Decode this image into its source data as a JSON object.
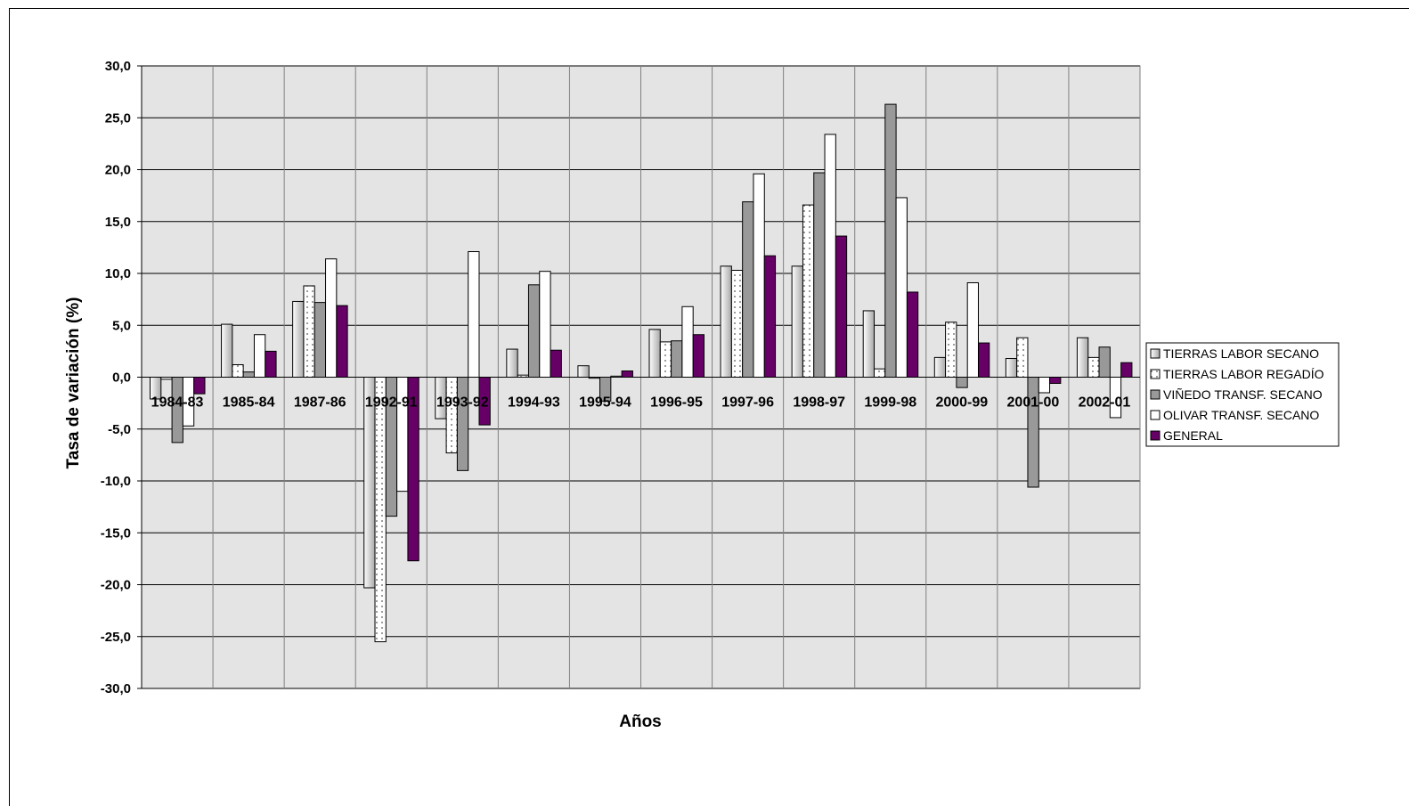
{
  "chart_data": {
    "type": "bar",
    "title": "",
    "xlabel": "Años",
    "ylabel": "Tasa de variación (%)",
    "ylim": [
      -30,
      30
    ],
    "ytick_step": 5,
    "ytick_labels": [
      "30,0",
      "25,0",
      "20,0",
      "15,0",
      "10,0",
      "5,0",
      "0,0",
      "-5,0",
      "-10,0",
      "-15,0",
      "-20,0",
      "-25,0",
      "-30,0"
    ],
    "grid": true,
    "legend_position": "right",
    "plot_background": "#e4e4e4",
    "categories": [
      "1984-83",
      "1985-84",
      "1987-86",
      "1992-91",
      "1993-92",
      "1994-93",
      "1995-94",
      "1996-95",
      "1997-96",
      "1998-97",
      "1999-98",
      "2000-99",
      "2001-00",
      "2002-01"
    ],
    "series": [
      {
        "name": "TIERRAS LABOR SECANO",
        "fill": "gradient-white-gray",
        "values": [
          -2.1,
          5.1,
          7.3,
          -20.3,
          -4.0,
          2.7,
          1.1,
          4.6,
          10.7,
          10.7,
          6.4,
          1.9,
          1.8,
          3.8
        ]
      },
      {
        "name": "TIERRAS LABOR REGADÍO",
        "fill": "dotted",
        "values": [
          -0.2,
          1.2,
          8.8,
          -25.5,
          -7.3,
          0.2,
          -0.1,
          3.4,
          10.3,
          16.6,
          0.8,
          5.3,
          3.8,
          1.9
        ]
      },
      {
        "name": "VIÑEDO TRANSF. SECANO",
        "fill": "#999999",
        "values": [
          -6.3,
          0.5,
          7.2,
          -13.4,
          -9.0,
          8.9,
          -2.3,
          3.5,
          16.9,
          19.7,
          26.3,
          -1.0,
          -10.6,
          2.9
        ]
      },
      {
        "name": "OLIVAR TRANSF. SECANO",
        "fill": "#ffffff",
        "values": [
          -4.7,
          4.1,
          11.4,
          -11.0,
          12.1,
          10.2,
          0.1,
          6.8,
          19.6,
          23.4,
          17.3,
          9.1,
          -1.5,
          -3.9
        ]
      },
      {
        "name": "GENERAL",
        "fill": "#660066",
        "values": [
          -1.6,
          2.5,
          6.9,
          -17.7,
          -4.6,
          2.6,
          0.6,
          4.1,
          11.7,
          13.6,
          8.2,
          3.3,
          -0.6,
          1.4
        ]
      }
    ]
  }
}
